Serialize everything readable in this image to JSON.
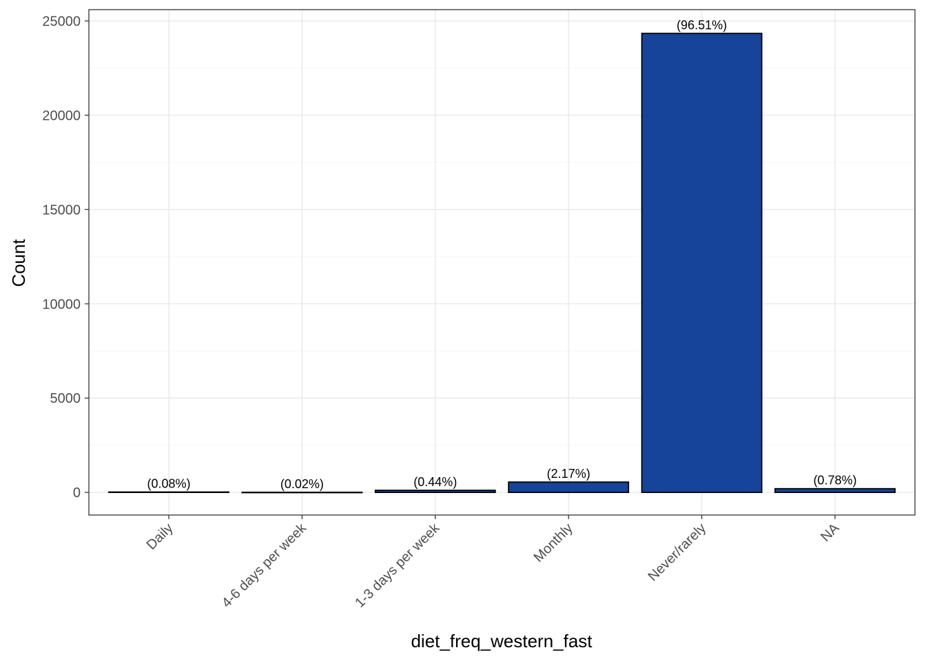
{
  "chart_data": {
    "type": "bar",
    "title": "",
    "xlabel": "diet_freq_western_fast",
    "ylabel": "Count",
    "categories": [
      "Daily",
      "4-6 days per week",
      "1-3 days per week",
      "Monthly",
      "Never/rarely",
      "NA"
    ],
    "values": [
      20,
      5,
      110,
      547,
      24340,
      197
    ],
    "labels": [
      "(0.08%)",
      "(0.02%)",
      "(0.44%)",
      "(2.17%)",
      "(96.51%)",
      "(0.78%)"
    ],
    "ylim": [
      -1200,
      25600
    ],
    "yticks": [
      0,
      5000,
      10000,
      15000,
      20000,
      25000
    ],
    "grid": true,
    "legend": "none",
    "colors": {
      "bar_fill": "#17449B",
      "bar_stroke": "#000000",
      "grid_major": "#EBEBEB",
      "grid_minor": "#F5F5F5",
      "panel_border": "#333333"
    }
  }
}
